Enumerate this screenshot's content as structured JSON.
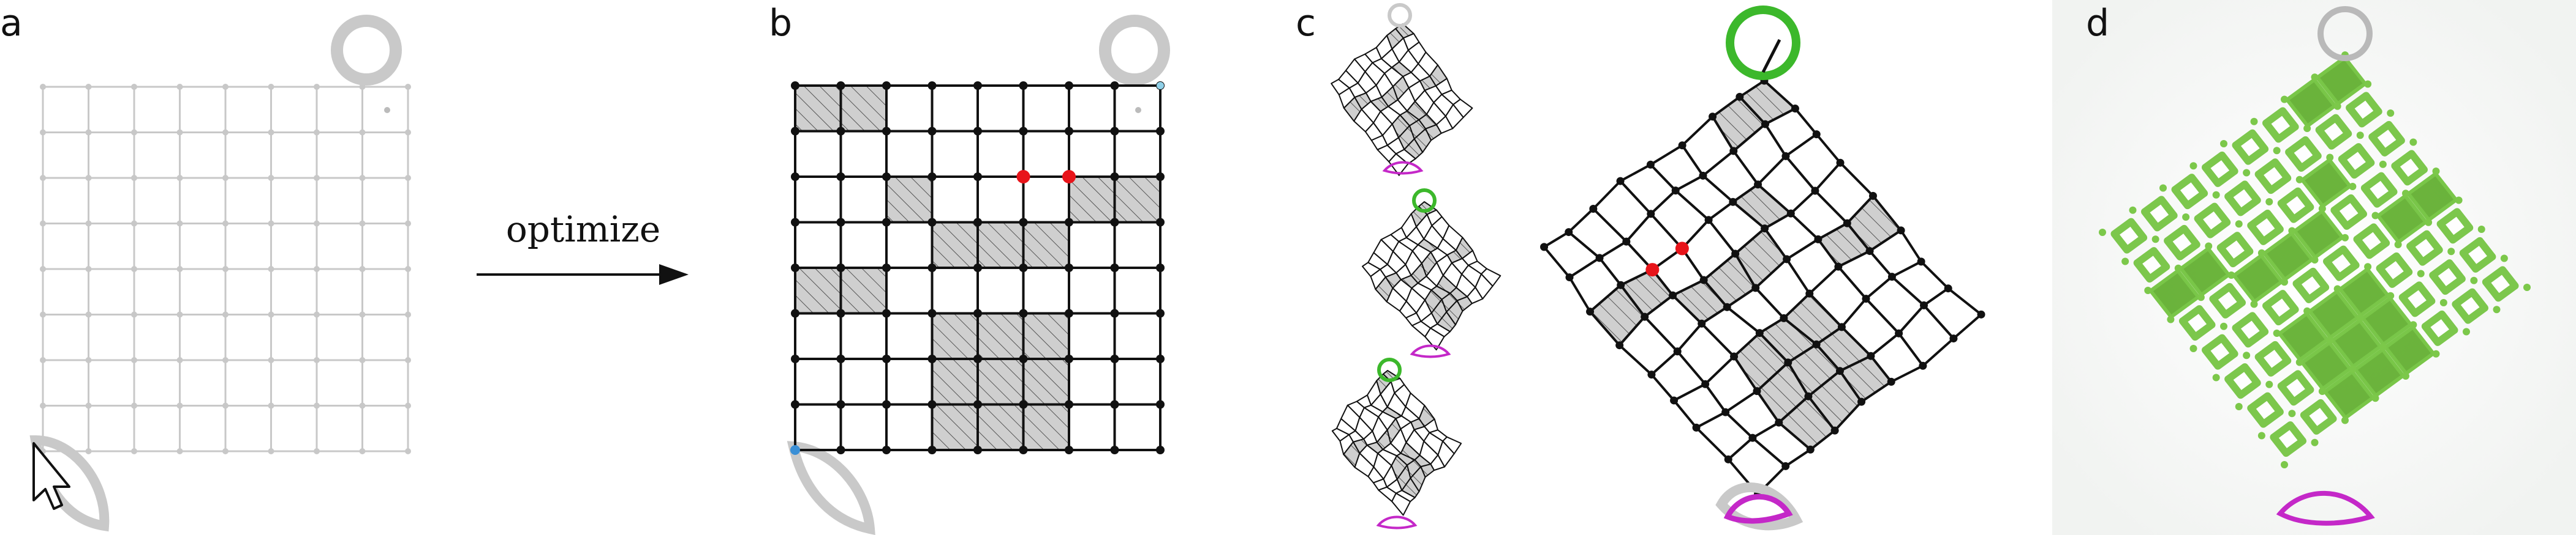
{
  "panels": {
    "a": "a",
    "b": "b",
    "c": "c",
    "d": "d"
  },
  "arrow_label": "optimize",
  "grid": {
    "cells": 8
  },
  "shaded_cells_b": [
    [
      0,
      0
    ],
    [
      1,
      0
    ],
    [
      2,
      2
    ],
    [
      6,
      2
    ],
    [
      7,
      2
    ],
    [
      3,
      3
    ],
    [
      4,
      3
    ],
    [
      5,
      3
    ],
    [
      0,
      4
    ],
    [
      1,
      4
    ],
    [
      3,
      5
    ],
    [
      4,
      5
    ],
    [
      5,
      5
    ],
    [
      3,
      6
    ],
    [
      4,
      6
    ],
    [
      5,
      6
    ],
    [
      3,
      7
    ],
    [
      4,
      7
    ],
    [
      5,
      7
    ]
  ],
  "red_nodes_b": [
    [
      5,
      2
    ],
    [
      6,
      2
    ]
  ],
  "colors": {
    "grid_light": "#c8c8c8",
    "grid_dark": "#111111",
    "shade": "#cfcfcf",
    "red": "#e8141a",
    "green": "#3cb82b",
    "magenta": "#c428c8",
    "gray_handle": "#cfcfcf",
    "blue": "#3a8fd6",
    "photo_green": "#6fc23a"
  }
}
